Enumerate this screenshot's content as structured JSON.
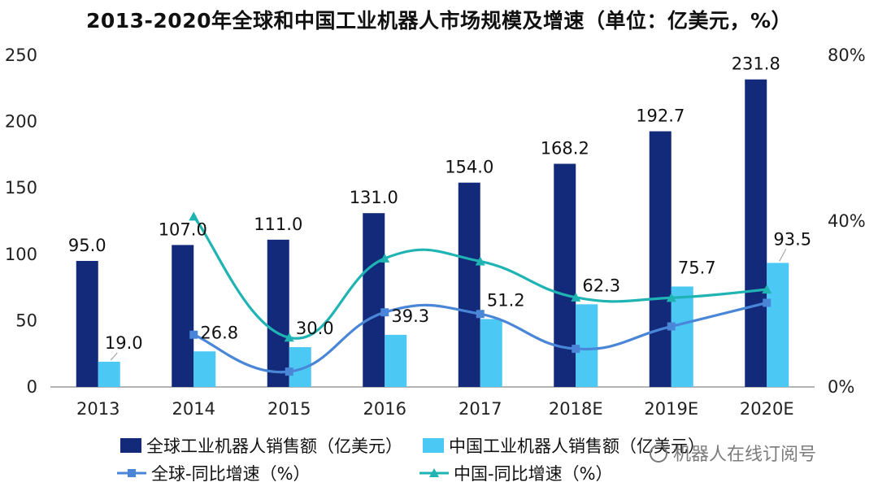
{
  "title": "2013-2020年全球和中国工业机器人市场规模及增速（单位：亿美元，%）",
  "watermark": "机器人在线订阅号",
  "colors": {
    "global_bar": "#13297a",
    "china_bar": "#4cc8f4",
    "global_line": "#4a86d8",
    "china_line": "#1fb3b3"
  },
  "chart_data": {
    "type": "bar",
    "title": "2013-2020年全球和中国工业机器人市场规模及增速（单位：亿美元，%）",
    "categories": [
      "2013",
      "2014",
      "2015",
      "2016",
      "2017",
      "2018E",
      "2019E",
      "2020E"
    ],
    "y_left": {
      "min": 0,
      "max": 250,
      "ticks": [
        "0",
        "50",
        "100",
        "150",
        "200",
        "250"
      ]
    },
    "y_right": {
      "min": 0,
      "max": 80,
      "ticks": [
        "0%",
        "40%",
        "80%"
      ]
    },
    "series": [
      {
        "name": "全球工业机器人销售额（亿美元）",
        "kind": "bar",
        "axis": "left",
        "values": [
          95.0,
          107.0,
          111.0,
          131.0,
          154.0,
          168.2,
          192.7,
          231.8
        ],
        "labels": [
          "95.0",
          "107.0",
          "111.0",
          "131.0",
          "154.0",
          "168.2",
          "192.7",
          "231.8"
        ]
      },
      {
        "name": "中国工业机器人销售额（亿美元）",
        "kind": "bar",
        "axis": "left",
        "values": [
          19.0,
          26.8,
          30.0,
          39.3,
          51.2,
          62.3,
          75.7,
          93.5
        ],
        "labels": [
          "19.0",
          "26.8",
          "30.0",
          "39.3",
          "51.2",
          "62.3",
          "75.7",
          "93.5"
        ]
      },
      {
        "name": "全球-同比增速（%）",
        "kind": "line",
        "axis": "right",
        "values": [
          null,
          12.6,
          3.7,
          18.0,
          17.6,
          9.2,
          14.6,
          20.3
        ]
      },
      {
        "name": "中国-同比增速（%）",
        "kind": "line",
        "axis": "right",
        "values": [
          null,
          41.1,
          11.9,
          31.0,
          30.3,
          21.6,
          21.5,
          23.5
        ]
      }
    ],
    "legend": {
      "position": "bottom"
    },
    "grid": false
  }
}
